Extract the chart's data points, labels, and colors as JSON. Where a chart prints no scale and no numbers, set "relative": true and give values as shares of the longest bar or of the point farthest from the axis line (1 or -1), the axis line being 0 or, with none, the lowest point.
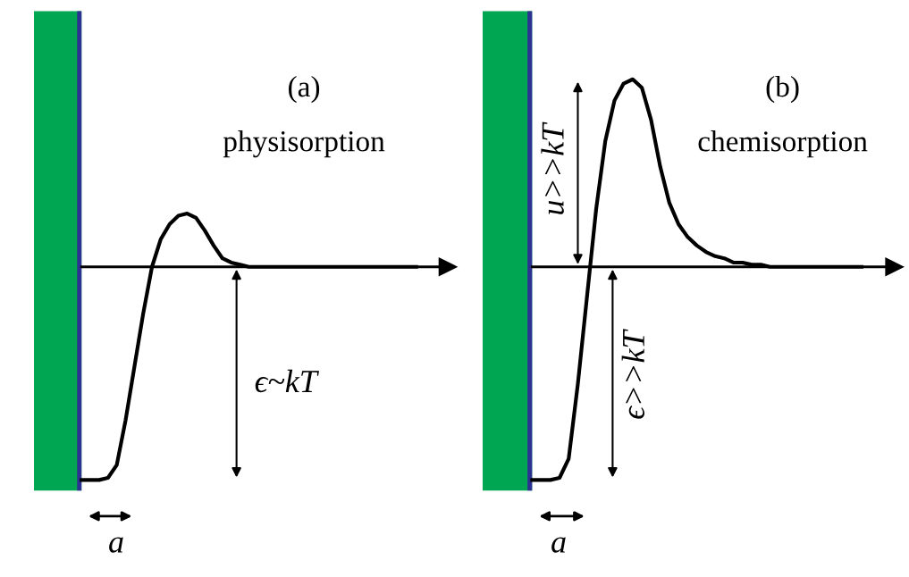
{
  "chart_data": [
    {
      "type": "line",
      "title": "(a)",
      "subtitle": "physisorption",
      "relative": true,
      "categories": [
        null,
        null,
        null,
        null,
        null,
        null,
        null,
        null,
        null,
        null,
        null,
        null,
        null,
        null,
        null,
        null,
        null,
        null,
        null,
        null,
        null,
        null,
        null,
        null,
        null,
        null,
        null,
        null,
        null,
        null,
        null,
        null,
        null,
        null,
        null,
        null,
        null,
        null,
        null
      ],
      "series": [
        {
          "color": "#000000",
          "values": [
            -1,
            -1,
            -1,
            -0.99,
            -0.93,
            -0.72,
            -0.47,
            -0.22,
            0.0,
            0.13,
            0.2,
            0.24,
            0.25,
            0.23,
            0.17,
            0.1,
            0.04,
            0.02,
            0.01,
            0,
            0,
            0,
            0,
            0,
            0,
            0,
            0,
            0,
            0,
            0,
            0,
            0,
            0,
            0,
            0,
            0,
            0,
            0,
            0
          ]
        }
      ],
      "annotations": [
        "ϵ~kT",
        "a"
      ]
    },
    {
      "type": "line",
      "title": "(b)",
      "subtitle": "chemisorption",
      "relative": true,
      "categories": [
        null,
        null,
        null,
        null,
        null,
        null,
        null,
        null,
        null,
        null,
        null,
        null,
        null,
        null,
        null,
        null,
        null,
        null,
        null,
        null,
        null,
        null,
        null,
        null,
        null,
        null,
        null,
        null,
        null,
        null,
        null,
        null,
        null,
        null,
        null,
        null,
        null
      ],
      "series": [
        {
          "color": "#000000",
          "values": [
            -1,
            -1,
            -1,
            -0.99,
            -0.9,
            -0.55,
            -0.14,
            0.27,
            0.59,
            0.78,
            0.86,
            0.88,
            0.84,
            0.69,
            0.47,
            0.3,
            0.2,
            0.14,
            0.1,
            0.07,
            0.05,
            0.04,
            0.02,
            0.02,
            0.01,
            0.01,
            0,
            0,
            0,
            0,
            0,
            0,
            0,
            0,
            0,
            0,
            0
          ]
        }
      ],
      "annotations": [
        "u>>kT",
        "ϵ>>kT",
        "a"
      ]
    }
  ]
}
